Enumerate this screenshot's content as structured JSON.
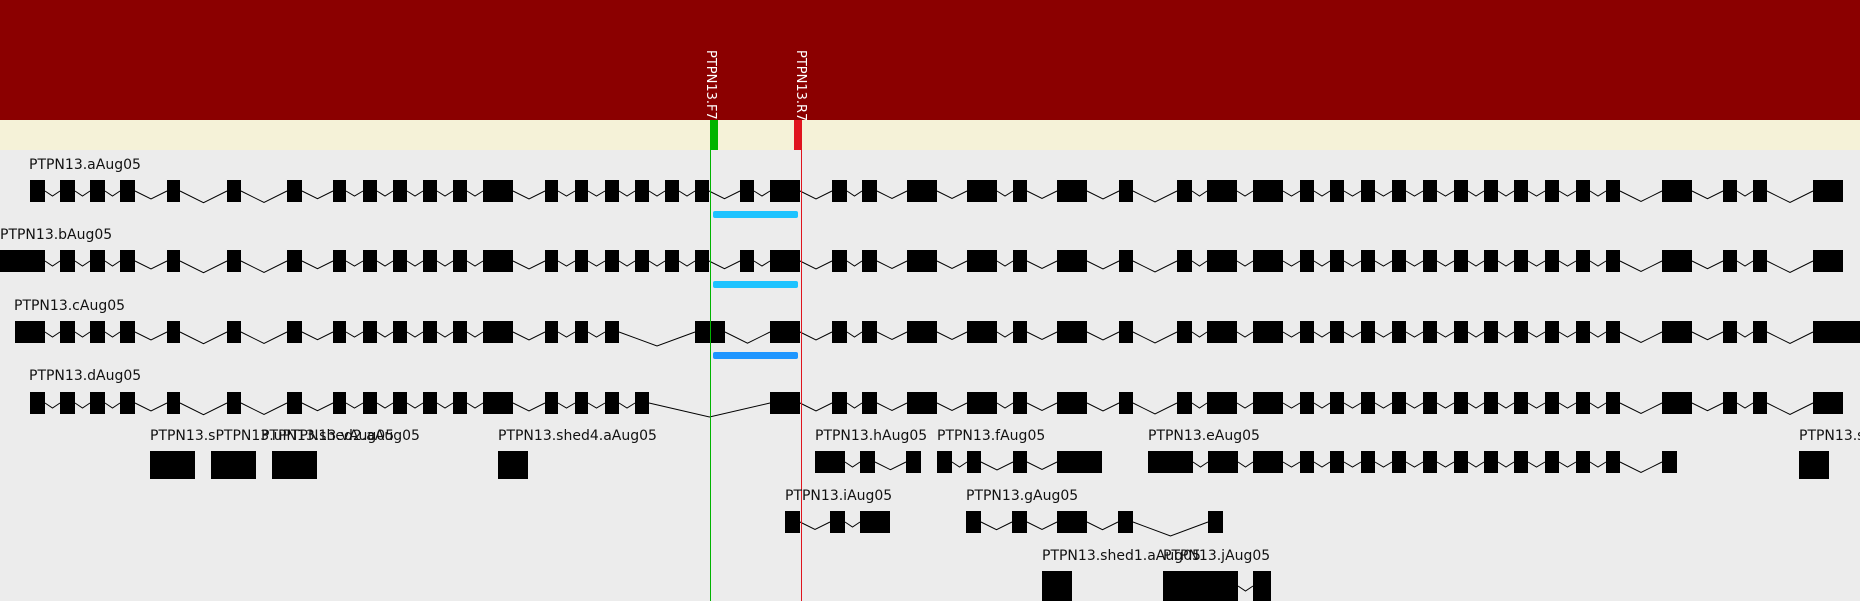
{
  "colors": {
    "header": "#8b0000",
    "primer_track": "#f5f2d8",
    "background": "#ececec",
    "exon": "#000000",
    "intron": "#000000",
    "forward_primer": "#00b400",
    "reverse_primer": "#e0141e",
    "amplicon_light": "#1ec3ff",
    "amplicon": "#1e96ff"
  },
  "primers": [
    {
      "name": "PTPN13.F7",
      "type": "forward",
      "color": "#00b400"
    },
    {
      "name": "PTPN13.R7",
      "type": "reverse",
      "color": "#e0141e"
    }
  ],
  "transcripts": [
    {
      "name": "PTPN13.aAug05"
    },
    {
      "name": "PTPN13.bAug05"
    },
    {
      "name": "PTPN13.cAug05"
    },
    {
      "name": "PTPN13.dAug05"
    },
    {
      "name": "PTPN13.sPTPN13.uPTPN13.vAug05"
    },
    {
      "name": "PTPN13.shed2.aAug05"
    },
    {
      "name": "PTPN13.shed4.aAug05"
    },
    {
      "name": "PTPN13.hAug05"
    },
    {
      "name": "PTPN13.fAug05"
    },
    {
      "name": "PTPN13.eAug05"
    },
    {
      "name": "PTPN13.s"
    },
    {
      "name": "PTPN13.iAug05"
    },
    {
      "name": "PTPN13.gAug05"
    },
    {
      "name": "PTPN13.shed1.aAug05"
    },
    {
      "name": "PTPN13.jAug05"
    }
  ]
}
